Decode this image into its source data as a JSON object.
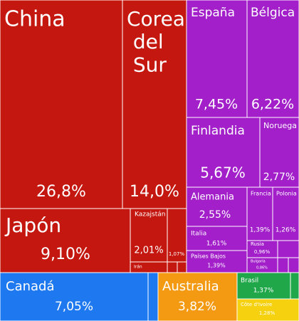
{
  "chart_data": {
    "type": "treemap",
    "categories": [
      "China",
      "Corea del Sur",
      "Japón",
      "Kazajstán",
      null,
      "Irán",
      null,
      null,
      "España",
      "Bélgica",
      "Finlandia",
      "Noruega",
      "Alemania",
      "Francia",
      "Polonia",
      "Italia",
      "Países Bajos",
      "Rusia",
      "Bulgaria",
      null,
      null,
      null,
      "Canadá",
      null,
      "Australia",
      "Brasil",
      null,
      "Côte d'Ivoire"
    ],
    "values": [
      26.8,
      14.0,
      9.1,
      2.01,
      1.07,
      0.41,
      0.1,
      0.1,
      7.45,
      6.22,
      5.67,
      2.77,
      2.55,
      1.39,
      1.26,
      1.61,
      1.39,
      0.96,
      0.86,
      0.5,
      0.3,
      0.3,
      7.05,
      0.4,
      3.82,
      1.37,
      0.25,
      1.28
    ],
    "value_labels": [
      "26,8%",
      "14,0%",
      "9,10%",
      "2,01%",
      "1,07%",
      null,
      null,
      null,
      "7,45%",
      "6,22%",
      "5,67%",
      "2,77%",
      "2,55%",
      "1,39%",
      "1,26%",
      "1,61%",
      "1,39%",
      "0,96%",
      "0,86%",
      null,
      null,
      null,
      "7,05%",
      null,
      "3,82%",
      "1,37%",
      null,
      "1,28%"
    ],
    "colors": [
      "#c4170f",
      "#c4170f",
      "#c4170f",
      "#c4170f",
      "#c4170f",
      "#c4170f",
      "#c4170f",
      "#c4170f",
      "#a21fca",
      "#a21fca",
      "#a21fca",
      "#a21fca",
      "#a21fca",
      "#a21fca",
      "#a21fca",
      "#a21fca",
      "#a21fca",
      "#a21fca",
      "#a21fca",
      "#a21fca",
      "#a21fca",
      "#a21fca",
      "#1e78f0",
      "#1e78f0",
      "#f39a12",
      "#1fa74a",
      "#1fa74a",
      "#f5d10f"
    ]
  }
}
